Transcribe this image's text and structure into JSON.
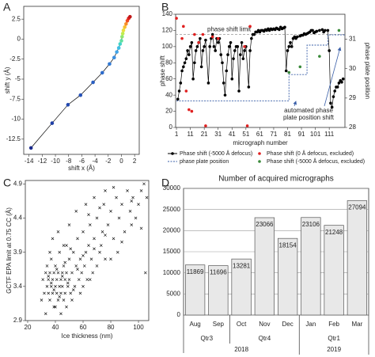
{
  "chart_data": [
    {
      "panel": "A",
      "type": "line",
      "xlabel": "shift x (Å)",
      "ylabel": "shift y (Å)",
      "xlim": [
        -14.8,
        2.7
      ],
      "ylim": [
        -14.4,
        4.1
      ],
      "xticks": [
        -14,
        -12,
        -10,
        -8,
        -6,
        -4,
        -2,
        0,
        2
      ],
      "yticks": [
        -12.5,
        -10,
        -7.5,
        -5,
        -2.5,
        0,
        2.5
      ],
      "series": [
        {
          "color": "#000000",
          "style": "line-markers",
          "x": [
            -13.7,
            -10.5,
            -8.1,
            -6.2,
            -4.3,
            -2.9,
            -1.8,
            -1.1,
            -0.7,
            -0.4,
            -0.2,
            0.0,
            0.1,
            0.2,
            0.3,
            0.5,
            0.7,
            0.9,
            1.1,
            1.3
          ],
          "values": [
            -13.6,
            -10.5,
            -8.2,
            -7.0,
            -5.4,
            -4.2,
            -3.1,
            -2.3,
            -1.6,
            -1.1,
            -0.6,
            -0.2,
            0.3,
            0.7,
            1.1,
            1.5,
            1.9,
            2.3,
            2.6,
            2.8
          ],
          "point_colors": [
            "#1a2a8c",
            "#1f3fa6",
            "#2349b0",
            "#2652b8",
            "#2a5fc2",
            "#2e6ccc",
            "#3179d4",
            "#3a8ee0",
            "#40a4e8",
            "#3cc0e6",
            "#40d4c8",
            "#60e0a0",
            "#90e870",
            "#c0ec50",
            "#e8e040",
            "#f8c030",
            "#f89028",
            "#f05020",
            "#e02020",
            "#c01818"
          ]
        }
      ]
    },
    {
      "panel": "B",
      "type": "line",
      "xlabel": "micrograph number",
      "ylabel": "phase shift",
      "y2label": "phase plate position",
      "xlim": [
        0.4,
        122.3
      ],
      "ylim": [
        0,
        140
      ],
      "y2lim": [
        28,
        31.85
      ],
      "xticks": [
        1,
        11,
        21,
        31,
        41,
        51,
        61,
        71,
        81,
        91,
        101,
        111
      ],
      "yticks": [
        0,
        20,
        40,
        60,
        80,
        100,
        120,
        140
      ],
      "y2ticks": [
        28,
        29,
        30,
        31
      ],
      "limit": 115,
      "limit_label": "phase shift limit",
      "annotation_lines": [
        "automated phase",
        "plate position shift"
      ],
      "series": [
        {
          "name": "Phase shift (-5000 Å defocus)",
          "color": "#000000",
          "style": "line-markers",
          "x": [
            2,
            3,
            4,
            5,
            6,
            7,
            8,
            9,
            10,
            11,
            12,
            13,
            14,
            15,
            16,
            17,
            18,
            19,
            20,
            21,
            22,
            24,
            25,
            26,
            27,
            28,
            29,
            30,
            31,
            32,
            33,
            34,
            35,
            36,
            37,
            38,
            39,
            40,
            41,
            42,
            43,
            44,
            45,
            46,
            47,
            48,
            49,
            50,
            51,
            53,
            54,
            55,
            56,
            57,
            58,
            59,
            60,
            61,
            62,
            63,
            64,
            65,
            66,
            67,
            68,
            69,
            70,
            71,
            72,
            73,
            74,
            75,
            76,
            77,
            78,
            79,
            80,
            81,
            82,
            83,
            84,
            85,
            86,
            87,
            88,
            90,
            91,
            92,
            93,
            94,
            95,
            96,
            97,
            98,
            99,
            100,
            101,
            102,
            104,
            106,
            107,
            108,
            110,
            111,
            112,
            113,
            114,
            115,
            116,
            117,
            118,
            119,
            120,
            121
          ],
          "values": [
            35,
            45,
            55,
            70,
            75,
            80,
            85,
            95,
            90,
            100,
            105,
            60,
            80,
            95,
            100,
            105,
            110,
            75,
            95,
            100,
            108,
            55,
            100,
            110,
            115,
            100,
            95,
            110,
            105,
            110,
            90,
            80,
            55,
            40,
            70,
            90,
            100,
            105,
            60,
            85,
            95,
            100,
            100,
            45,
            90,
            105,
            85,
            95,
            100,
            50,
            95,
            110,
            115,
            115,
            118,
            118,
            120,
            118,
            120,
            120,
            119,
            121,
            120,
            122,
            120,
            122,
            121,
            122,
            121,
            123,
            122,
            121,
            124,
            122,
            123,
            124,
            70,
            95,
            100,
            105,
            100,
            110,
            112,
            110,
            112,
            113,
            114,
            114,
            116,
            115,
            116,
            117,
            118,
            120,
            120,
            117,
            118,
            119,
            120,
            121,
            118,
            120,
            120,
            95,
            30,
            25,
            38,
            45,
            50,
            50,
            55,
            58,
            56,
            60
          ]
        },
        {
          "name": "Phase shift (0 Å defocus, excluded)",
          "color": "#e02020",
          "style": "markers",
          "x": [
            1,
            5,
            6,
            8,
            10,
            12,
            14,
            17,
            20,
            22,
            27,
            31,
            50,
            52,
            54
          ],
          "values": [
            135,
            110,
            125,
            45,
            22,
            20,
            115,
            105,
            115,
            2,
            112,
            110,
            100,
            2,
            125
          ]
        },
        {
          "name": "phase plate position",
          "color": "#3a5fa8",
          "style": "dashed",
          "axis": "y2",
          "x": [
            1,
            82,
            82,
            95,
            95,
            110,
            110,
            122
          ],
          "values": [
            28.9,
            28.9,
            29.8,
            29.8,
            30.8,
            30.8,
            31.15,
            31.15
          ]
        },
        {
          "name": "Phase shift (-5000 Å defocus, excluded)",
          "color": "#3a8a3a",
          "style": "markers",
          "x": [
            82,
            90,
            104,
            118
          ],
          "values": [
            68,
            75,
            88,
            120
          ]
        }
      ]
    },
    {
      "panel": "C",
      "type": "scatter",
      "xlabel": "Ice thickness (nm)",
      "ylabel": "GCTF EPA limit at 0.75 CC (Å)",
      "xlim": [
        18.3,
        107.4
      ],
      "ylim": [
        2.9,
        4.95
      ],
      "xticks": [
        20,
        40,
        60,
        80,
        100
      ],
      "yticks": [
        2.9,
        3.4,
        3.9,
        4.4,
        4.9
      ],
      "series": [
        {
          "color": "#000000",
          "marker": "x",
          "x": [
            30,
            31,
            32,
            33,
            34,
            34,
            35,
            35,
            36,
            36,
            37,
            37,
            38,
            38,
            39,
            39,
            40,
            40,
            41,
            41,
            42,
            42,
            43,
            43,
            44,
            44,
            45,
            45,
            46,
            46,
            47,
            47,
            48,
            48,
            49,
            50,
            50,
            51,
            52,
            53,
            54,
            55,
            56,
            57,
            58,
            59,
            60,
            61,
            62,
            63,
            64,
            65,
            66,
            67,
            68,
            70,
            72,
            74,
            75,
            76,
            78,
            80,
            82,
            84,
            85,
            86,
            88,
            90,
            92,
            94,
            95,
            96,
            98,
            100,
            102,
            104,
            105,
            106,
            33,
            36,
            38,
            40,
            42,
            44,
            46,
            48,
            50,
            52,
            55,
            58,
            60,
            62,
            65,
            68,
            70,
            73,
            76,
            80,
            35,
            37,
            39,
            41,
            43,
            45,
            47,
            49,
            51,
            53,
            56,
            60,
            64,
            68,
            72,
            76,
            82,
            88,
            95,
            102
          ],
          "values": [
            3.2,
            3.5,
            3.3,
            3.6,
            3.4,
            3.7,
            3.3,
            3.5,
            3.2,
            3.6,
            3.4,
            3.8,
            3.3,
            3.5,
            3.1,
            3.6,
            3.4,
            3.7,
            3.3,
            3.5,
            3.2,
            3.6,
            3.4,
            3.9,
            3.5,
            3.3,
            3.6,
            3.4,
            3.2,
            3.7,
            3.5,
            3.3,
            3.6,
            4.0,
            3.4,
            3.5,
            3.8,
            3.3,
            3.6,
            3.9,
            3.4,
            3.7,
            4.1,
            3.5,
            3.8,
            3.6,
            4.2,
            3.7,
            3.9,
            3.5,
            4.0,
            4.3,
            3.8,
            3.6,
            4.1,
            4.4,
            3.9,
            4.2,
            4.6,
            3.8,
            4.3,
            4.5,
            4.1,
            4.7,
            3.9,
            4.4,
            4.6,
            4.2,
            4.8,
            4.5,
            4.3,
            4.7,
            4.4,
            4.6,
            4.8,
            4.9,
            3.6,
            4.7,
            3.0,
            3.9,
            4.1,
            3.1,
            4.2,
            3.0,
            4.0,
            3.1,
            4.3,
            3.2,
            4.5,
            3.3,
            3.4,
            4.6,
            3.5,
            4.7,
            3.7,
            4.0,
            4.8,
            3.8,
            3.55,
            3.45,
            3.35,
            3.65,
            3.25,
            3.55,
            3.75,
            3.45,
            3.95,
            3.35,
            3.65,
            3.85,
            4.45,
            3.95,
            4.55,
            4.15,
            4.85,
            4.05,
            4.65,
            4.25
          ]
        }
      ]
    },
    {
      "panel": "D",
      "type": "bar",
      "title": "Number of acquired micrographs",
      "categories": [
        "Aug",
        "Sep",
        "Oct",
        "Nov",
        "Dec",
        "Jan",
        "Feb",
        "Mar"
      ],
      "values": [
        11869,
        11696,
        13281,
        23066,
        18154,
        23106,
        21248,
        27094
      ],
      "color": "#e8e8e8",
      "groups": [
        {
          "label": "Qtr3",
          "size": 2
        },
        {
          "label": "Qtr4",
          "size": 3
        },
        {
          "label": "Qtr1",
          "size": 3
        }
      ],
      "years": [
        {
          "label": "2018",
          "size": 5
        },
        {
          "label": "2019",
          "size": 3
        }
      ],
      "ylim": [
        0,
        30000
      ],
      "yticks": [
        0,
        5000,
        10000,
        15000,
        20000,
        25000,
        30000
      ],
      "grid": true
    }
  ]
}
